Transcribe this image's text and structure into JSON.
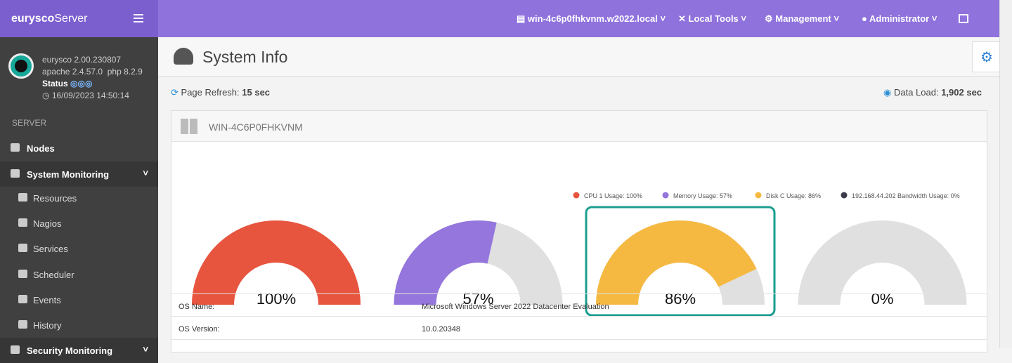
{
  "header": {
    "brand_bold": "eurysco",
    "brand_light": "Server",
    "host": "win-4c6p0fhkvnm.w2022.local",
    "menus": [
      "Local Tools",
      "Management",
      "Administrator"
    ]
  },
  "sidebar": {
    "version": "eurysco 2.00.230807",
    "stack": "apache 2.4.57.0  php 8.2.9",
    "status_label": "Status",
    "timestamp": "16/09/2023 14:50:14",
    "section": "SERVER",
    "items": [
      "Nodes",
      "System Monitoring",
      "Resources",
      "Nagios",
      "Services",
      "Scheduler",
      "Events",
      "History",
      "Security Monitoring"
    ]
  },
  "page": {
    "title": "System Info",
    "refresh_label": "Page Refresh:",
    "refresh_value": "15 sec",
    "load_label": "Data Load:",
    "load_value": "1,902 sec",
    "host_heading": "WIN-4C6P0FHKVNM"
  },
  "chart_data": {
    "type": "gauge",
    "ylim": [
      0,
      100
    ],
    "series": [
      {
        "name": "CPU 1 Usage: 100%",
        "color": "#e8553e",
        "values": [
          100
        ],
        "value_labels": [
          "100%"
        ]
      },
      {
        "name": "Memory Usage: 57%",
        "color": "#9476dc",
        "values": [
          57
        ],
        "value_labels": [
          "57%"
        ]
      },
      {
        "name": "Disk C Usage: 86%",
        "color": "#f5b942",
        "values": [
          86
        ],
        "value_labels": [
          "86%"
        ]
      },
      {
        "name": "192.168.44.202 Bandwidth Usage: 0%",
        "color": "#3a3a4a",
        "values": [
          0
        ],
        "value_labels": [
          "0%"
        ]
      }
    ]
  },
  "table": {
    "rows": [
      [
        "OS Name:",
        "Microsoft Windows Server 2022 Datacenter Evaluation"
      ],
      [
        "OS Version:",
        "10.0.20348"
      ]
    ]
  }
}
